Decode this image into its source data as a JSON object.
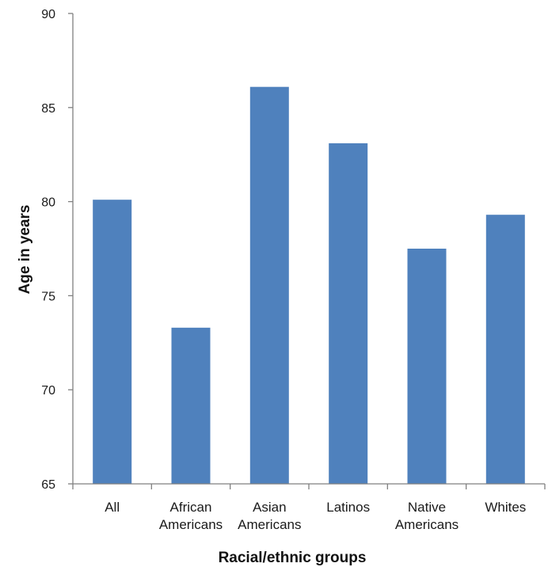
{
  "chart_data": {
    "type": "bar",
    "title": "",
    "xlabel": "Racial/ethnic groups",
    "ylabel": "Age in years",
    "ylim": [
      65,
      90
    ],
    "yticks": [
      "65",
      "70",
      "75",
      "80",
      "85",
      "90"
    ],
    "categories": [
      [
        "All"
      ],
      [
        "African",
        "Americans"
      ],
      [
        "Asian",
        "Americans"
      ],
      [
        "Latinos"
      ],
      [
        "Native",
        "Americans"
      ],
      [
        "Whites"
      ]
    ],
    "values": [
      80.1,
      73.3,
      86.1,
      83.1,
      77.5,
      79.3
    ],
    "bar_color": "#4f81bd",
    "grid": false,
    "legend": "none"
  }
}
